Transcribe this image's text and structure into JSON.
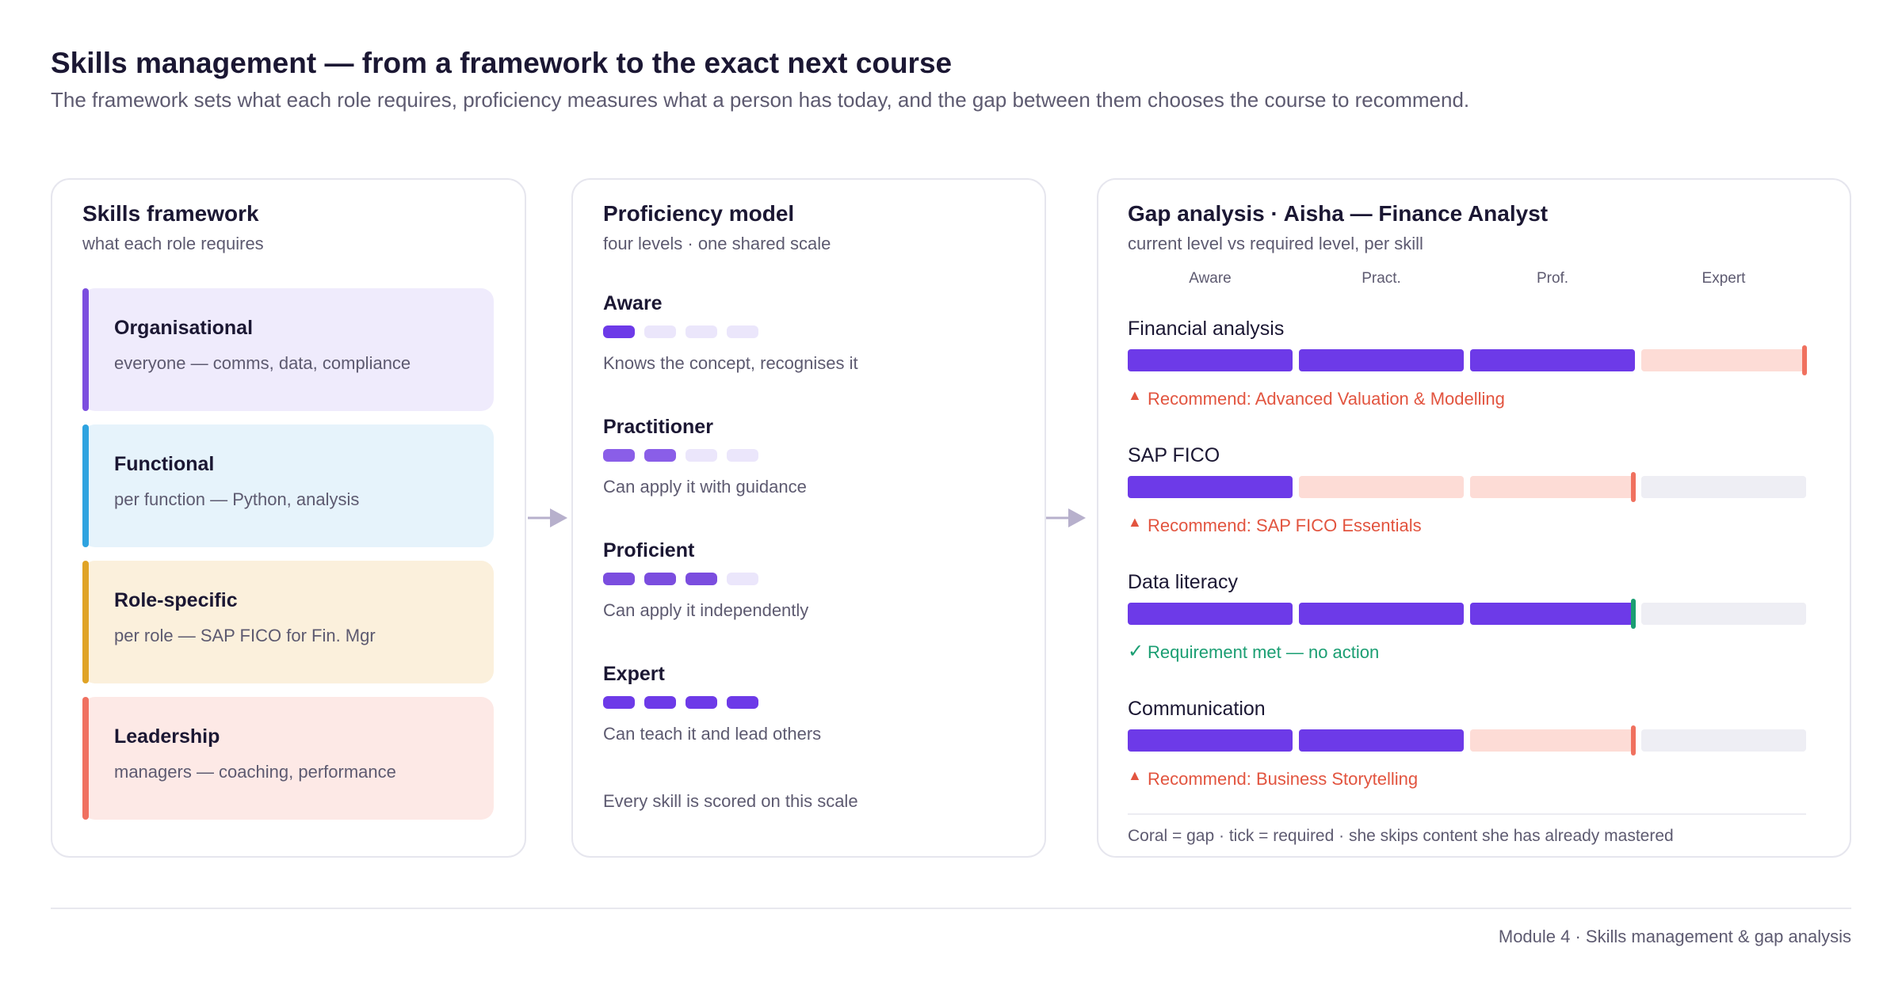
{
  "header": {
    "title": "Skills management — from a framework to the exact next course",
    "subtitle": "The framework sets what each role requires, proficiency measures what a person has today, and the gap between them chooses the course to recommend."
  },
  "framework": {
    "title": "Skills framework",
    "subtitle": "what each role requires",
    "layers": [
      {
        "name": "Organisational",
        "description": "everyone — comms, data, compliance",
        "color": "#7b4ddf",
        "background": "#efebfc"
      },
      {
        "name": "Functional",
        "description": "per function — Python, analysis",
        "color": "#2ea3e0",
        "background": "#e6f3fb"
      },
      {
        "name": "Role-specific",
        "description": "per role — SAP FICO for Fin. Mgr",
        "color": "#e0a325",
        "background": "#fbf0dc"
      },
      {
        "name": "Leadership",
        "description": "managers — coaching, performance",
        "color": "#f07060",
        "background": "#fde9e6"
      }
    ]
  },
  "proficiency": {
    "title": "Proficiency model",
    "subtitle": "four levels · one shared scale",
    "levels": [
      {
        "name": "Aware",
        "level": 1,
        "description": "Knows the concept, recognises it",
        "color": "#6d3ae8"
      },
      {
        "name": "Practitioner",
        "level": 2,
        "description": "Can apply it with guidance",
        "color": "#8a5ee8"
      },
      {
        "name": "Proficient",
        "level": 3,
        "description": "Can apply it independently",
        "color": "#7b4ddf"
      },
      {
        "name": "Expert",
        "level": 4,
        "description": "Can teach it and lead others",
        "color": "#6d3ae8"
      }
    ],
    "empty_color": "#ebe6fb",
    "note": "Every skill is scored on this scale"
  },
  "gap": {
    "title": "Gap analysis · Aisha — Finance Analyst",
    "subtitle": "current level vs required level, per skill",
    "scale": [
      "Aware",
      "Pract.",
      "Prof.",
      "Expert"
    ],
    "skills": [
      {
        "name": "Financial analysis",
        "current": 3,
        "required": 4,
        "result": "Recommend: Advanced Valuation & Modelling"
      },
      {
        "name": "SAP FICO",
        "current": 1,
        "required": 3,
        "result": "Recommend: SAP FICO Essentials"
      },
      {
        "name": "Data literacy",
        "current": 3,
        "required": 3,
        "result": "Requirement met — no action"
      },
      {
        "name": "Communication",
        "current": 2,
        "required": 3,
        "result": "Recommend: Business Storytelling"
      }
    ],
    "colors": {
      "current": "#6d3ae8",
      "gap": "#fddcd6",
      "beyond": "#eeeef4",
      "tick_gap": "#f0715f",
      "tick_met": "#1a9e72",
      "recommend": "#e2543f",
      "met": "#1a9e72"
    },
    "note": "Coral = gap · tick = required · she skips content she has already mastered"
  },
  "footer": "Module 4 · Skills management & gap analysis"
}
